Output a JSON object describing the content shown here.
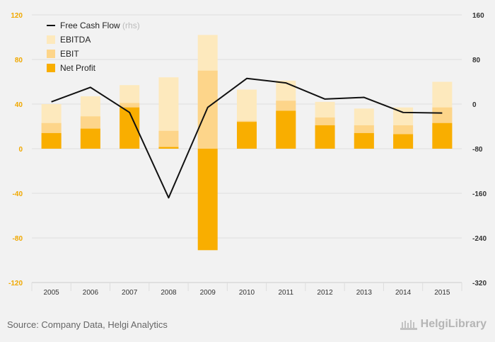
{
  "source": "Source: Company Data, Helgi Analytics",
  "brand": {
    "name": "HelgiLibrary"
  },
  "colors": {
    "ebitda": "#fde9bd",
    "ebit": "#fdd58a",
    "net_profit": "#f9ae00",
    "fcf": "#111111",
    "left_axis": "#f0a800",
    "right_axis": "#333333",
    "grid": "#dddddd"
  },
  "chart_data": {
    "type": "bar",
    "categories": [
      "2005",
      "2006",
      "2007",
      "2008",
      "2009",
      "2010",
      "2011",
      "2012",
      "2013",
      "2014",
      "2015"
    ],
    "series": [
      {
        "name": "EBITDA",
        "type": "bar",
        "axis": "left",
        "values": [
          40,
          47,
          57,
          64,
          102,
          53,
          61,
          42,
          36,
          37,
          60
        ]
      },
      {
        "name": "EBIT",
        "type": "bar",
        "axis": "left",
        "values": [
          23,
          29,
          41,
          16,
          70,
          25,
          43,
          28,
          21,
          21,
          37
        ]
      },
      {
        "name": "Net Profit",
        "type": "bar",
        "axis": "left",
        "values": [
          14,
          18,
          37,
          1.5,
          -91,
          24,
          34,
          21,
          14,
          13,
          23
        ]
      },
      {
        "name": "Free Cash Flow",
        "type": "line",
        "axis": "right",
        "values": [
          4,
          30,
          -15,
          -168,
          -6,
          46,
          38,
          9,
          12,
          -15,
          -16
        ]
      }
    ],
    "legend_suffix": "(rhs)",
    "legend_position": "top-left",
    "y_left": {
      "min": -120,
      "max": 120,
      "ticks": [
        120,
        80,
        40,
        0,
        -40,
        -80,
        -120
      ]
    },
    "y_right": {
      "min": -320,
      "max": 160,
      "ticks": [
        160,
        80,
        0,
        -80,
        -160,
        -240,
        -320
      ]
    },
    "grid": true
  }
}
